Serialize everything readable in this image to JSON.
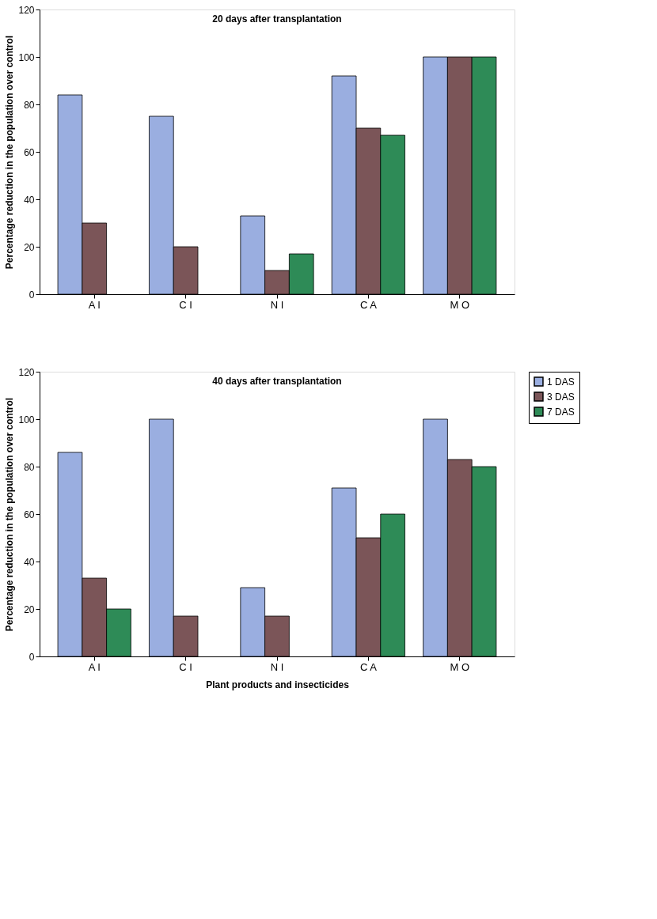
{
  "chart_data": [
    {
      "type": "bar",
      "title": "20 days after transplantation",
      "ylabel": "Percentage reduction in the population over control",
      "categories": [
        "A I",
        "C I",
        "N I",
        "C A",
        "M O"
      ],
      "series": [
        {
          "color": "#9aaee0",
          "values": [
            84,
            75,
            33,
            92,
            100
          ]
        },
        {
          "color": "#7b5558",
          "values": [
            30,
            20,
            10,
            70,
            100
          ]
        },
        {
          "color": "#2e8b57",
          "values": [
            null,
            null,
            17,
            67,
            100
          ]
        }
      ],
      "ylim": [
        0,
        120
      ],
      "yticks": [
        0,
        20,
        40,
        60,
        80,
        100,
        120
      ],
      "grid": false,
      "legend": false
    },
    {
      "type": "bar",
      "title": "40 days after transplantation",
      "xlabel": "Plant products and insecticides",
      "ylabel": "Percentage reduction in the population over control",
      "categories": [
        "A I",
        "C I",
        "N I",
        "C A",
        "M O"
      ],
      "series": [
        {
          "name": "1 DAS",
          "color": "#9aaee0",
          "values": [
            86,
            100,
            29,
            71,
            100
          ]
        },
        {
          "name": "3 DAS",
          "color": "#7b5558",
          "values": [
            33,
            17,
            17,
            50,
            83
          ]
        },
        {
          "name": "7 DAS",
          "color": "#2e8b57",
          "values": [
            20,
            null,
            null,
            60,
            80
          ]
        }
      ],
      "ylim": [
        0,
        120
      ],
      "yticks": [
        0,
        20,
        40,
        60,
        80,
        100,
        120
      ],
      "grid": false,
      "legend": "right"
    }
  ]
}
